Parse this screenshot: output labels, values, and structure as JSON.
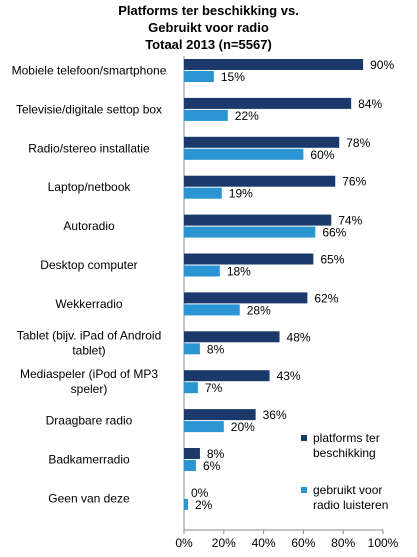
{
  "chart_data": {
    "type": "bar",
    "orientation": "horizontal",
    "title": "Platforms ter beschikking vs. Gebruikt voor radio",
    "title_lines": [
      "Platforms ter beschikking vs.",
      "Gebruikt voor radio"
    ],
    "subtitle": "Totaal 2013 (n=5567)",
    "categories": [
      [
        "Mobiele telefoon/smartphone"
      ],
      [
        "Televisie/digitale settop box"
      ],
      [
        "Radio/stereo installatie"
      ],
      [
        "Laptop/netbook"
      ],
      [
        "Autoradio"
      ],
      [
        "Desktop computer"
      ],
      [
        "Wekkerradio"
      ],
      [
        "Tablet (bijv. iPad of Android",
        "tablet)"
      ],
      [
        "Mediaspeler (iPod of MP3",
        "speler)"
      ],
      [
        "Draagbare radio"
      ],
      [
        "Badkamerradio"
      ],
      [
        "Geen van deze"
      ]
    ],
    "series": [
      {
        "name": "platforms ter beschikking",
        "legend_lines": [
          "platforms ter",
          "beschikking"
        ],
        "color": "#1b3a6b",
        "values": [
          90,
          84,
          78,
          76,
          74,
          65,
          62,
          48,
          43,
          36,
          8,
          0
        ]
      },
      {
        "name": "gebruikt voor radio luisteren",
        "legend_lines": [
          "gebruikt voor",
          "radio luisteren"
        ],
        "color": "#2b95d3",
        "values": [
          15,
          22,
          60,
          19,
          66,
          18,
          28,
          8,
          7,
          20,
          6,
          2
        ]
      }
    ],
    "value_suffix": "%",
    "xlim": [
      0,
      100
    ],
    "xticks": [
      "0%",
      "20%",
      "40%",
      "60%",
      "80%",
      "100%"
    ],
    "legend_position": "bottom-right",
    "grid": false
  }
}
